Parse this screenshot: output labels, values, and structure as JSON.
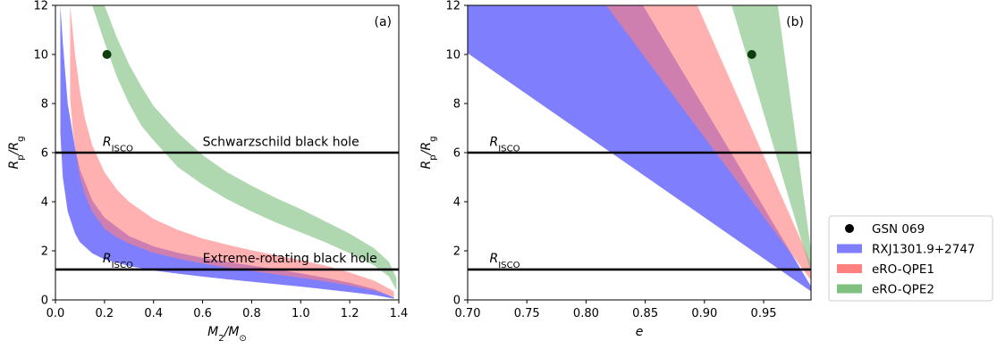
{
  "chart_data": [
    {
      "type": "area",
      "panel_label": "(a)",
      "xlabel": "M2/M⊙",
      "ylabel": "Rp/Rg",
      "xlim": [
        0,
        1.4
      ],
      "ylim": [
        0,
        12
      ],
      "x_ticks": [
        "0.0",
        "0.2",
        "0.4",
        "0.6",
        "0.8",
        "1.0",
        "1.2",
        "1.4"
      ],
      "y_ticks": [
        "0",
        "2",
        "4",
        "6",
        "8",
        "10",
        "12"
      ],
      "series": [
        {
          "name": "RXJ1301.9+2747",
          "color": "#7f7ffe",
          "x": [
            0.02,
            0.03,
            0.05,
            0.08,
            0.1,
            0.15,
            0.2,
            0.3,
            0.4,
            0.5,
            0.6,
            0.7,
            0.8,
            0.9,
            1.0,
            1.1,
            1.2,
            1.3,
            1.38
          ],
          "upper": [
            12.0,
            10.5,
            8.0,
            6.2,
            5.3,
            4.05,
            3.35,
            2.6,
            2.18,
            1.92,
            1.72,
            1.55,
            1.4,
            1.25,
            1.08,
            0.9,
            0.7,
            0.44,
            0.1
          ],
          "lower": [
            6.8,
            5.0,
            3.6,
            2.7,
            2.35,
            1.9,
            1.65,
            1.38,
            1.2,
            1.07,
            0.95,
            0.84,
            0.74,
            0.64,
            0.54,
            0.43,
            0.32,
            0.2,
            0.05
          ]
        },
        {
          "name": "eRO-QPE1",
          "color": "#ff8080",
          "x": [
            0.06,
            0.07,
            0.08,
            0.1,
            0.12,
            0.15,
            0.2,
            0.25,
            0.3,
            0.4,
            0.5,
            0.6,
            0.7,
            0.8,
            0.9,
            1.0,
            1.1,
            1.2,
            1.3,
            1.38
          ],
          "upper": [
            12.0,
            11.0,
            10.0,
            8.5,
            7.4,
            6.3,
            5.2,
            4.5,
            4.0,
            3.3,
            2.85,
            2.5,
            2.25,
            2.02,
            1.82,
            1.62,
            1.4,
            1.12,
            0.78,
            0.35
          ],
          "lower": [
            8.2,
            7.0,
            6.2,
            5.0,
            4.3,
            3.6,
            2.9,
            2.55,
            2.3,
            1.92,
            1.68,
            1.48,
            1.32,
            1.18,
            1.04,
            0.9,
            0.76,
            0.58,
            0.38,
            0.12
          ]
        },
        {
          "name": "eRO-QPE2",
          "color": "#80c080",
          "x": [
            0.15,
            0.2,
            0.25,
            0.3,
            0.35,
            0.4,
            0.5,
            0.6,
            0.7,
            0.8,
            0.9,
            1.0,
            1.1,
            1.2,
            1.3,
            1.36,
            1.39
          ],
          "upper": [
            12.0,
            12.0,
            10.7,
            9.6,
            8.7,
            7.9,
            6.8,
            5.9,
            5.2,
            4.65,
            4.15,
            3.7,
            3.2,
            2.7,
            2.1,
            1.55,
            0.9
          ],
          "lower": [
            12.0,
            10.5,
            9.1,
            8.0,
            7.1,
            6.5,
            5.4,
            4.7,
            4.1,
            3.6,
            3.15,
            2.75,
            2.35,
            1.9,
            1.4,
            0.95,
            0.4
          ]
        }
      ],
      "points": [
        {
          "name": "GSN 069",
          "x": 0.21,
          "y": 10.0,
          "color": "#0e3d0e"
        }
      ],
      "hlines": [
        {
          "y": 6.0
        },
        {
          "y": 1.24
        }
      ],
      "annotations": [
        {
          "text": "Schwarzschild black hole",
          "x": 0.6,
          "y": 6.2
        },
        {
          "text": "Extreme-rotating black hole",
          "x": 0.6,
          "y": 1.45
        }
      ],
      "risco_labels": [
        {
          "x": 0.2,
          "y": 6.2
        },
        {
          "x": 0.2,
          "y": 1.45
        }
      ]
    },
    {
      "type": "area",
      "panel_label": "(b)",
      "xlabel": "e",
      "ylabel": "Rp/Rg",
      "xlim": [
        0.7,
        0.99
      ],
      "ylim": [
        0,
        12
      ],
      "x_ticks": [
        "0.70",
        "0.75",
        "0.80",
        "0.85",
        "0.90",
        "0.95"
      ],
      "y_ticks": [
        "0",
        "2",
        "4",
        "6",
        "8",
        "10",
        "12"
      ],
      "series": [
        {
          "name": "RXJ1301.9+2747",
          "color": "#7f7ffe",
          "polygon": [
            [
              0.7,
              12.0
            ],
            [
              0.848,
              12.0
            ],
            [
              0.99,
              0.55
            ],
            [
              0.99,
              0.35
            ],
            [
              0.7,
              10.05
            ]
          ]
        },
        {
          "name": "eRO-QPE1",
          "color": "#ff8080",
          "polygon": [
            [
              0.817,
              12.0
            ],
            [
              0.894,
              12.0
            ],
            [
              0.99,
              1.5
            ],
            [
              0.99,
              0.8
            ]
          ]
        },
        {
          "name": "eRO-QPE2",
          "color": "#80c080",
          "polygon": [
            [
              0.923,
              12.0
            ],
            [
              0.962,
              12.0
            ],
            [
              0.99,
              2.0
            ],
            [
              0.99,
              1.1
            ]
          ]
        }
      ],
      "points": [
        {
          "name": "GSN 069",
          "x": 0.94,
          "y": 10.0,
          "color": "#0e3d0e"
        }
      ],
      "hlines": [
        {
          "y": 6.0
        },
        {
          "y": 1.24
        }
      ],
      "annotations": [],
      "risco_labels": [
        {
          "x": 0.72,
          "y": 6.2
        },
        {
          "x": 0.72,
          "y": 1.45
        }
      ]
    }
  ],
  "texts": {
    "risco_main": "R",
    "risco_sub": "ISCO",
    "ylabel_main": "R",
    "ylabel_sub1": "p",
    "ylabel_mid": "/R",
    "ylabel_sub2": "g",
    "xlabel_a_main": "M",
    "xlabel_a_sub1": "2",
    "xlabel_a_mid": "/M",
    "xlabel_a_sub2": "⊙",
    "xlabel_b": "e"
  },
  "legend": {
    "placement": "lower-right outside",
    "entries": [
      {
        "label": "GSN 069",
        "kind": "point",
        "color": "#000000"
      },
      {
        "label": "RXJ1301.9+2747",
        "kind": "patch",
        "color": "#7f7ffe"
      },
      {
        "label": "eRO-QPE1",
        "kind": "patch",
        "color": "#ff8080"
      },
      {
        "label": "eRO-QPE2",
        "kind": "patch",
        "color": "#80c080"
      }
    ]
  }
}
